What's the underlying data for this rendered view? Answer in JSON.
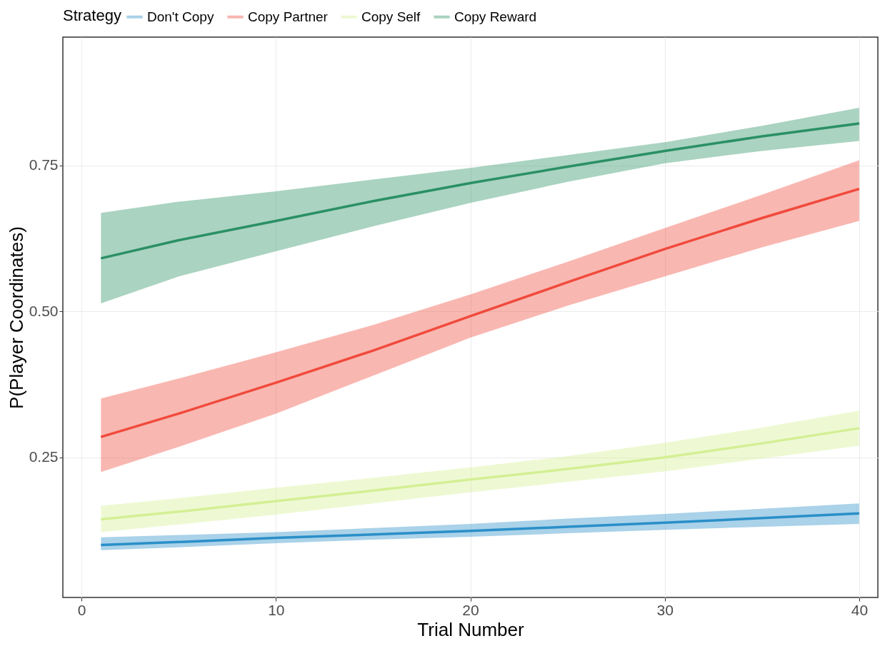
{
  "chart_data": {
    "type": "line",
    "xlabel": "Trial Number",
    "ylabel": "P(Player Coordinates)",
    "legend_title": "Strategy",
    "legend": "top",
    "xlim": [
      -0.96,
      40.96
    ],
    "ylim": [
      0.01,
      0.97
    ],
    "xticks": [
      0,
      10,
      20,
      30,
      40
    ],
    "yticks": [
      0.25,
      {
        "value": 0.5,
        "label": "0.50"
      },
      0.75
    ],
    "grid": true,
    "series": [
      {
        "name": "Don't Copy",
        "color": "#2a8fc8",
        "x": [
          1,
          5,
          10,
          15,
          20,
          25,
          30,
          35,
          40
        ],
        "values": [
          0.1,
          0.105,
          0.112,
          0.118,
          0.124,
          0.131,
          0.138,
          0.146,
          0.154
        ],
        "lower": [
          0.091,
          0.096,
          0.103,
          0.109,
          0.114,
          0.12,
          0.126,
          0.131,
          0.136
        ],
        "upper": [
          0.113,
          0.117,
          0.122,
          0.129,
          0.136,
          0.145,
          0.153,
          0.162,
          0.171
        ]
      },
      {
        "name": "Copy Partner",
        "color": "#f04a3c",
        "x": [
          1,
          5,
          10,
          15,
          20,
          25,
          30,
          35,
          40
        ],
        "values": [
          0.285,
          0.325,
          0.378,
          0.433,
          0.492,
          0.55,
          0.607,
          0.66,
          0.71
        ],
        "lower": [
          0.225,
          0.268,
          0.325,
          0.39,
          0.455,
          0.51,
          0.56,
          0.61,
          0.655
        ],
        "upper": [
          0.351,
          0.385,
          0.43,
          0.477,
          0.529,
          0.585,
          0.643,
          0.7,
          0.759
        ]
      },
      {
        "name": "Copy Self",
        "color": "#d4ef94",
        "x": [
          1,
          5,
          10,
          15,
          20,
          25,
          30,
          35,
          40
        ],
        "values": [
          0.144,
          0.157,
          0.175,
          0.193,
          0.212,
          0.23,
          0.25,
          0.274,
          0.3
        ],
        "lower": [
          0.122,
          0.135,
          0.152,
          0.171,
          0.19,
          0.208,
          0.226,
          0.248,
          0.27
        ],
        "upper": [
          0.167,
          0.18,
          0.198,
          0.215,
          0.233,
          0.252,
          0.275,
          0.301,
          0.33
        ]
      },
      {
        "name": "Copy Reward",
        "color": "#2a9064",
        "x": [
          1,
          5,
          10,
          15,
          20,
          25,
          30,
          35,
          40
        ],
        "values": [
          0.591,
          0.622,
          0.655,
          0.689,
          0.72,
          0.748,
          0.775,
          0.8,
          0.822
        ],
        "lower": [
          0.514,
          0.56,
          0.603,
          0.646,
          0.686,
          0.722,
          0.754,
          0.775,
          0.792
        ],
        "upper": [
          0.669,
          0.688,
          0.706,
          0.726,
          0.746,
          0.768,
          0.79,
          0.818,
          0.849
        ]
      }
    ]
  }
}
